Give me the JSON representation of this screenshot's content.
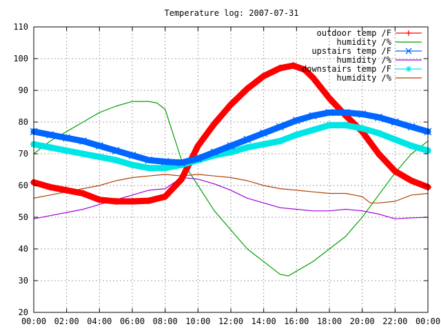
{
  "chart_data": {
    "type": "line",
    "title": "Temperature log: 2007-07-31",
    "xlabel": "",
    "ylabel": "",
    "xlim": [
      0,
      24
    ],
    "ylim": [
      20,
      110
    ],
    "grid": true,
    "legend_position": "top-right",
    "x_ticks": [
      {
        "value": 0,
        "label": "00:00"
      },
      {
        "value": 2,
        "label": "02:00"
      },
      {
        "value": 4,
        "label": "04:00"
      },
      {
        "value": 6,
        "label": "06:00"
      },
      {
        "value": 8,
        "label": "08:00"
      },
      {
        "value": 10,
        "label": "10:00"
      },
      {
        "value": 12,
        "label": "12:00"
      },
      {
        "value": 14,
        "label": "14:00"
      },
      {
        "value": 16,
        "label": "16:00"
      },
      {
        "value": 18,
        "label": "18:00"
      },
      {
        "value": 20,
        "label": "20:00"
      },
      {
        "value": 22,
        "label": "22:00"
      },
      {
        "value": 24,
        "label": "00:00"
      }
    ],
    "y_ticks": [
      {
        "value": 20,
        "label": "20"
      },
      {
        "value": 30,
        "label": "30"
      },
      {
        "value": 40,
        "label": "40"
      },
      {
        "value": 50,
        "label": "50"
      },
      {
        "value": 60,
        "label": "60"
      },
      {
        "value": 70,
        "label": "70"
      },
      {
        "value": 80,
        "label": "80"
      },
      {
        "value": 90,
        "label": "90"
      },
      {
        "value": 100,
        "label": "100"
      },
      {
        "value": 110,
        "label": "110"
      }
    ],
    "series": [
      {
        "name": "outdoor temp /F",
        "color": "#ff0000",
        "marker": "plus",
        "x": [
          0,
          1,
          2,
          3,
          4,
          5,
          6,
          7,
          8,
          9,
          10,
          11,
          12,
          13,
          14,
          15,
          15.8,
          16.5,
          17,
          18,
          19,
          20,
          21,
          22,
          23,
          24
        ],
        "y": [
          61,
          59.5,
          58.5,
          57.5,
          55.5,
          55,
          55,
          55.2,
          56.5,
          62,
          72.5,
          79.5,
          85.5,
          90.5,
          94.5,
          97,
          97.8,
          96.5,
          94,
          87.5,
          82,
          77,
          70,
          64.5,
          61.5,
          59.5
        ]
      },
      {
        "name": "humidity /%",
        "color": "#00a000",
        "marker": "none",
        "x": [
          0,
          1,
          2,
          3,
          4,
          5,
          6,
          7,
          7.5,
          8,
          9,
          10,
          11,
          12,
          13,
          14,
          15,
          15.5,
          16,
          17,
          18,
          19,
          20,
          21,
          22,
          23,
          24
        ],
        "y": [
          70,
          74,
          77,
          80,
          83,
          85,
          86.5,
          86.5,
          86,
          84,
          68,
          60,
          52,
          46,
          40,
          36,
          32,
          31.5,
          33,
          36,
          40,
          44,
          50,
          57,
          64,
          70,
          74
        ]
      },
      {
        "name": "upstairs temp /F",
        "color": "#0066ff",
        "marker": "x",
        "x": [
          0,
          1,
          2,
          3,
          4,
          5,
          6,
          7,
          8,
          9,
          10,
          11,
          12,
          13,
          14,
          15,
          16,
          17,
          18,
          19,
          20,
          21,
          22,
          23,
          24
        ],
        "y": [
          77,
          76,
          75,
          74,
          72.5,
          71,
          69.5,
          68,
          67.5,
          67.2,
          68.5,
          70.5,
          72.5,
          74.5,
          76.5,
          78.5,
          80.5,
          82,
          83,
          83,
          82.5,
          81.5,
          80,
          78.5,
          77
        ]
      },
      {
        "name": "humidity /%",
        "color": "#a000d0",
        "marker": "none",
        "x": [
          0,
          1,
          2,
          3,
          4,
          5,
          6,
          7,
          8,
          9,
          10,
          11,
          12,
          13,
          14,
          15,
          16,
          17,
          18,
          19,
          20,
          21,
          22,
          23,
          24
        ],
        "y": [
          49.5,
          50.5,
          51.5,
          52.5,
          54,
          55.5,
          57,
          58.5,
          59,
          62.5,
          62,
          60.5,
          58.5,
          56,
          54.5,
          53,
          52.5,
          52,
          52,
          52.5,
          52,
          51,
          49.5,
          49.8,
          50
        ]
      },
      {
        "name": "downstairs temp /F",
        "color": "#00e6e6",
        "marker": "star",
        "x": [
          0,
          1,
          2,
          3,
          4,
          5,
          6,
          7,
          8,
          9,
          10,
          11,
          12,
          13,
          14,
          15,
          16,
          17,
          18,
          19,
          20,
          21,
          22,
          23,
          24
        ],
        "y": [
          73,
          72,
          71,
          70,
          69,
          68,
          66.5,
          65.5,
          65.5,
          66.5,
          68,
          69.5,
          70.5,
          72,
          73,
          74,
          76,
          77.5,
          79,
          79,
          78,
          76.5,
          74.5,
          72.5,
          71
        ]
      },
      {
        "name": "humidity /%",
        "color": "#b04000",
        "marker": "none",
        "x": [
          0,
          1,
          2,
          3,
          4,
          5,
          6,
          7,
          8,
          9,
          10,
          11,
          12,
          13,
          14,
          15,
          16,
          17,
          18,
          19,
          20,
          20.5,
          21,
          22,
          23,
          24
        ],
        "y": [
          56,
          57,
          58,
          59,
          60,
          61.5,
          62.5,
          63,
          63.5,
          63,
          63.5,
          63,
          62.5,
          61.5,
          60,
          59,
          58.5,
          58,
          57.5,
          57.5,
          56.5,
          54.5,
          54.5,
          55,
          57,
          57.5
        ]
      }
    ]
  }
}
